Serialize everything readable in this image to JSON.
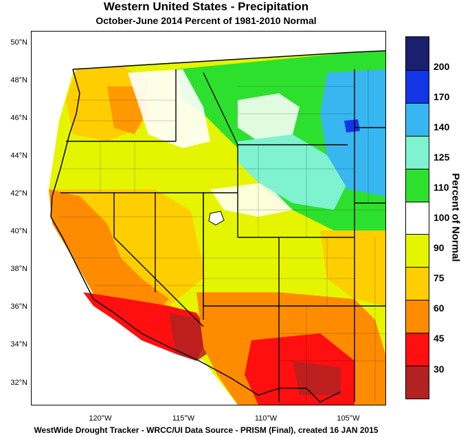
{
  "title": "Western United States - Precipitation",
  "subtitle": "October-June 2014  Percent of 1981-2010 Normal",
  "footer": "WestWide Drought Tracker - WRCC/UI  Data Source - PRISM (Final), created 16 JAN 2015",
  "legend": {
    "title": "Percent of Normal",
    "colors": [
      "#1a1f6e",
      "#1235e6",
      "#38b6f0",
      "#7ff2cf",
      "#2ee02e",
      "#ffffff",
      "#e5f500",
      "#ffce00",
      "#ff8c00",
      "#ff0f0f",
      "#b22222"
    ],
    "ticks": [
      "200",
      "170",
      "140",
      "125",
      "110",
      "100",
      "90",
      "75",
      "60",
      "45",
      "30"
    ]
  },
  "lat_labels": [
    "50°N",
    "48°N",
    "46°N",
    "44°N",
    "42°N",
    "40°N",
    "38°N",
    "36°N",
    "34°N",
    "32°N"
  ],
  "lon_labels": [
    "120°W",
    "115°W",
    "110°W",
    "105°W"
  ],
  "map": {
    "region": "Western United States",
    "lat_range": [
      31,
      50.8
    ],
    "lon_range": [
      -124.8,
      -102.8
    ],
    "category_colors": {
      "below_30": "#b22222",
      "30_45": "#ff0f0f",
      "45_60": "#ff8c00",
      "60_75": "#ffce00",
      "75_90": "#e5f500",
      "90_100": "#ffffff",
      "100_110": "#ffffff",
      "110_125": "#2ee02e",
      "125_140": "#7ff2cf",
      "140_170": "#38b6f0",
      "170_200": "#1235e6"
    }
  }
}
